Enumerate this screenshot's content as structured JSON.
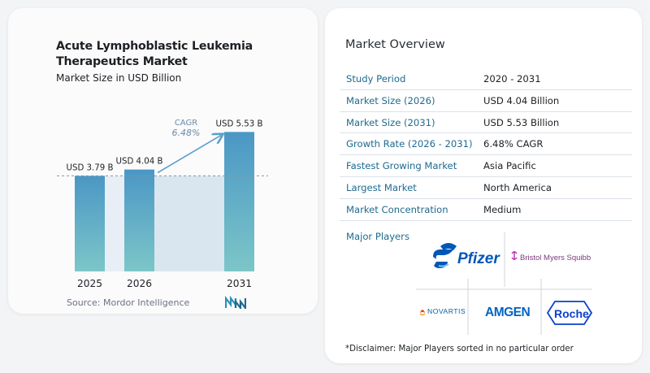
{
  "title": "Acute Lymphoblastic Leukemia Therapeutics Market",
  "subtitle": "Market Size in USD Billion",
  "source": "Source:  Mordor Intelligence",
  "chart_data": {
    "type": "bar",
    "categories": [
      "2025",
      "2026",
      "2031"
    ],
    "values": [
      3.79,
      4.04,
      5.53
    ],
    "value_labels": [
      "USD 3.79 B",
      "USD 4.04 B",
      "USD 5.53 B"
    ],
    "ylim": [
      0,
      5.8
    ],
    "cagr": {
      "label": "CAGR",
      "value": "6.48%"
    },
    "reference_line_value": 3.79,
    "grid": false,
    "colors": {
      "bar_top": "#4b97c5",
      "bar_bottom": "#7cc6c8",
      "shade": "#d9e6f0",
      "arrow": "#5b9fc9"
    }
  },
  "overview": {
    "title": "Market Overview",
    "rows": [
      {
        "label": "Study Period",
        "value": "2020 - 2031"
      },
      {
        "label": "Market Size (2026)",
        "value": "USD 4.04 Billion"
      },
      {
        "label": "Market Size (2031)",
        "value": "USD 5.53 Billion"
      },
      {
        "label": "Growth Rate (2026 - 2031)",
        "value": "6.48% CAGR"
      },
      {
        "label": "Fastest Growing Market",
        "value": "Asia Pacific"
      },
      {
        "label": "Largest Market",
        "value": "North America"
      },
      {
        "label": "Market Concentration",
        "value": "Medium"
      }
    ],
    "players_title": "Major Players",
    "players": [
      "Pfizer",
      "Bristol Myers Squibb",
      "NOVARTIS",
      "AMGEN",
      "Roche"
    ],
    "disclaimer": "*Disclaimer: Major Players sorted in no particular order"
  },
  "colors": {
    "label_blue": "#1f6a8f",
    "text_dark": "#1d2024",
    "brand_teal": "#2f8fb6"
  }
}
